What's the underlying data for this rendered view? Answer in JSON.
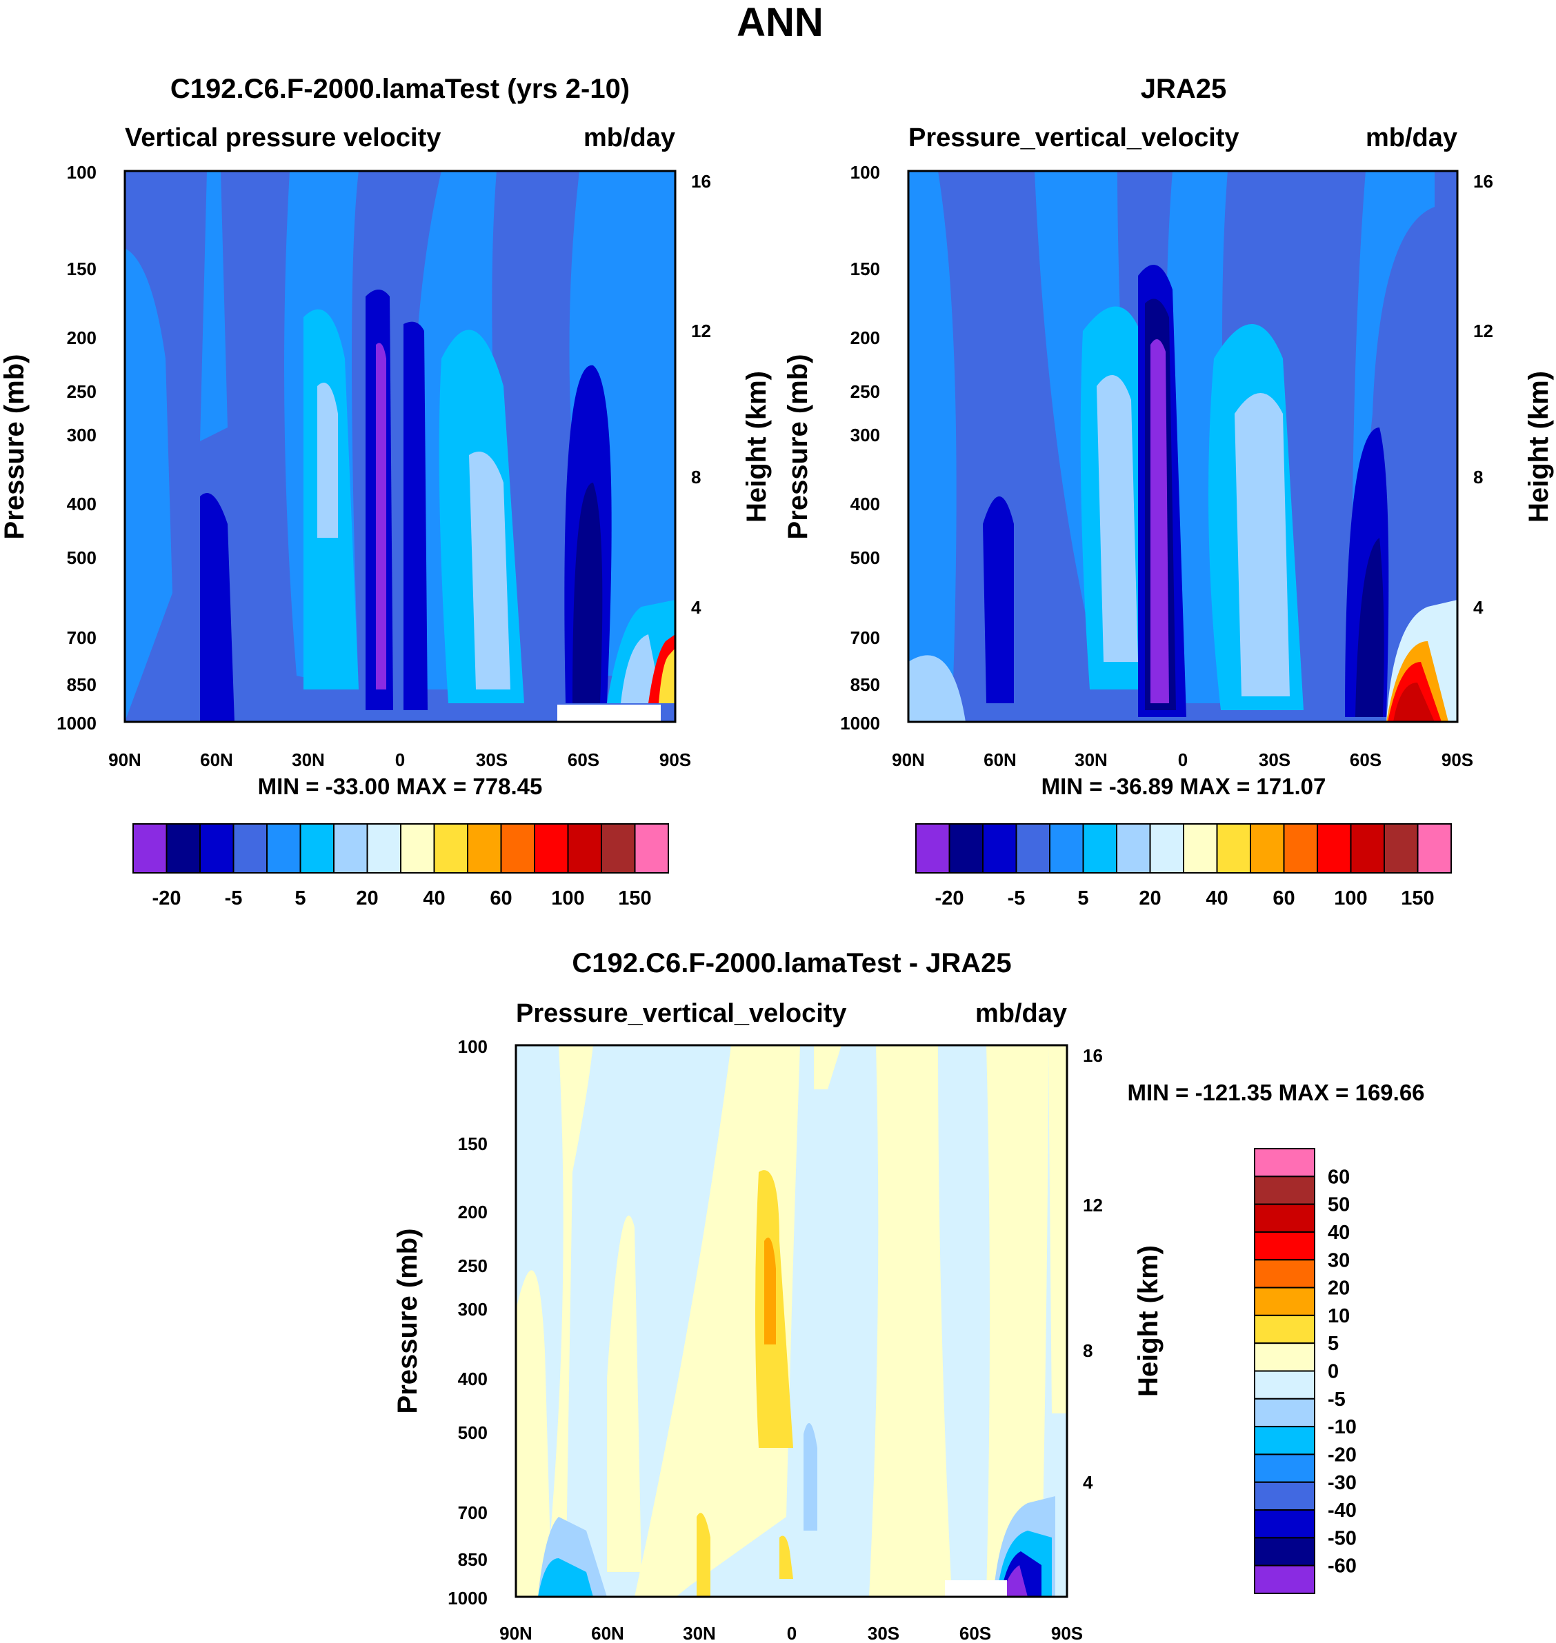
{
  "figure_title": "ANN",
  "panels": {
    "model": {
      "title": "C192.C6.F-2000.lamaTest (yrs 2-10)",
      "left_label": "Vertical pressure velocity",
      "right_label": "mb/day",
      "stats": "MIN = -33.00  MAX = 778.45"
    },
    "obs": {
      "title": "JRA25",
      "left_label": "Pressure_vertical_velocity",
      "right_label": "mb/day",
      "stats": "MIN = -36.89  MAX = 171.07"
    },
    "diff": {
      "title": "C192.C6.F-2000.lamaTest - JRA25",
      "left_label": "Pressure_vertical_velocity",
      "right_label": "mb/day",
      "stats": "MIN = -121.35  MAX = 169.66"
    }
  },
  "chart_data": [
    {
      "type": "heatmap",
      "panel": "model",
      "x_categories": [
        "90N",
        "60N",
        "30N",
        "0",
        "30S",
        "60S",
        "90S"
      ],
      "y_levels": [
        "100",
        "150",
        "200",
        "250",
        "300",
        "400",
        "500",
        "700",
        "850",
        "1000"
      ],
      "ylabel": "Pressure (mb)",
      "y2label": "Height (km)",
      "y2_ticks": [
        "16",
        "12",
        "8",
        "4"
      ],
      "colorbar_labels": [
        "-20",
        "-5",
        "5",
        "20",
        "40",
        "60",
        "100",
        "150"
      ],
      "colors": [
        "#8a2be2",
        "#00008b",
        "#0000cd",
        "#4169e1",
        "#1e90ff",
        "#00bfff",
        "#a4d3ff",
        "#d6f2ff",
        "#ffffc8",
        "#ffe038",
        "#ffa500",
        "#ff6a00",
        "#ff0000",
        "#cc0000",
        "#a52a2a",
        "#ff6eb4"
      ],
      "min": -33.0,
      "max": 778.45
    },
    {
      "type": "heatmap",
      "panel": "obs",
      "x_categories": [
        "90N",
        "60N",
        "30N",
        "0",
        "30S",
        "60S",
        "90S"
      ],
      "y_levels": [
        "100",
        "150",
        "200",
        "250",
        "300",
        "400",
        "500",
        "700",
        "850",
        "1000"
      ],
      "ylabel": "Pressure (mb)",
      "y2label": "Height (km)",
      "y2_ticks": [
        "16",
        "12",
        "8",
        "4"
      ],
      "colorbar_labels": [
        "-20",
        "-5",
        "5",
        "20",
        "40",
        "60",
        "100",
        "150"
      ],
      "min": -36.89,
      "max": 171.07
    },
    {
      "type": "heatmap",
      "panel": "diff",
      "x_categories": [
        "90N",
        "60N",
        "30N",
        "0",
        "30S",
        "60S",
        "90S"
      ],
      "y_levels": [
        "100",
        "150",
        "200",
        "250",
        "300",
        "400",
        "500",
        "700",
        "850",
        "1000"
      ],
      "ylabel": "Pressure (mb)",
      "y2label": "Height (km)",
      "y2_ticks": [
        "16",
        "12",
        "8",
        "4"
      ],
      "colorbar_labels": [
        "60",
        "50",
        "40",
        "30",
        "20",
        "10",
        "5",
        "0",
        "-5",
        "-10",
        "-20",
        "-30",
        "-40",
        "-50",
        "-60"
      ],
      "colors": [
        "#ff6eb4",
        "#a52a2a",
        "#cc0000",
        "#ff0000",
        "#ff6a00",
        "#ffa500",
        "#ffe038",
        "#ffffc8",
        "#d6f2ff",
        "#a4d3ff",
        "#00bfff",
        "#1e90ff",
        "#4169e1",
        "#0000cd",
        "#00008b",
        "#8a2be2"
      ],
      "min": -121.35,
      "max": 169.66
    }
  ]
}
